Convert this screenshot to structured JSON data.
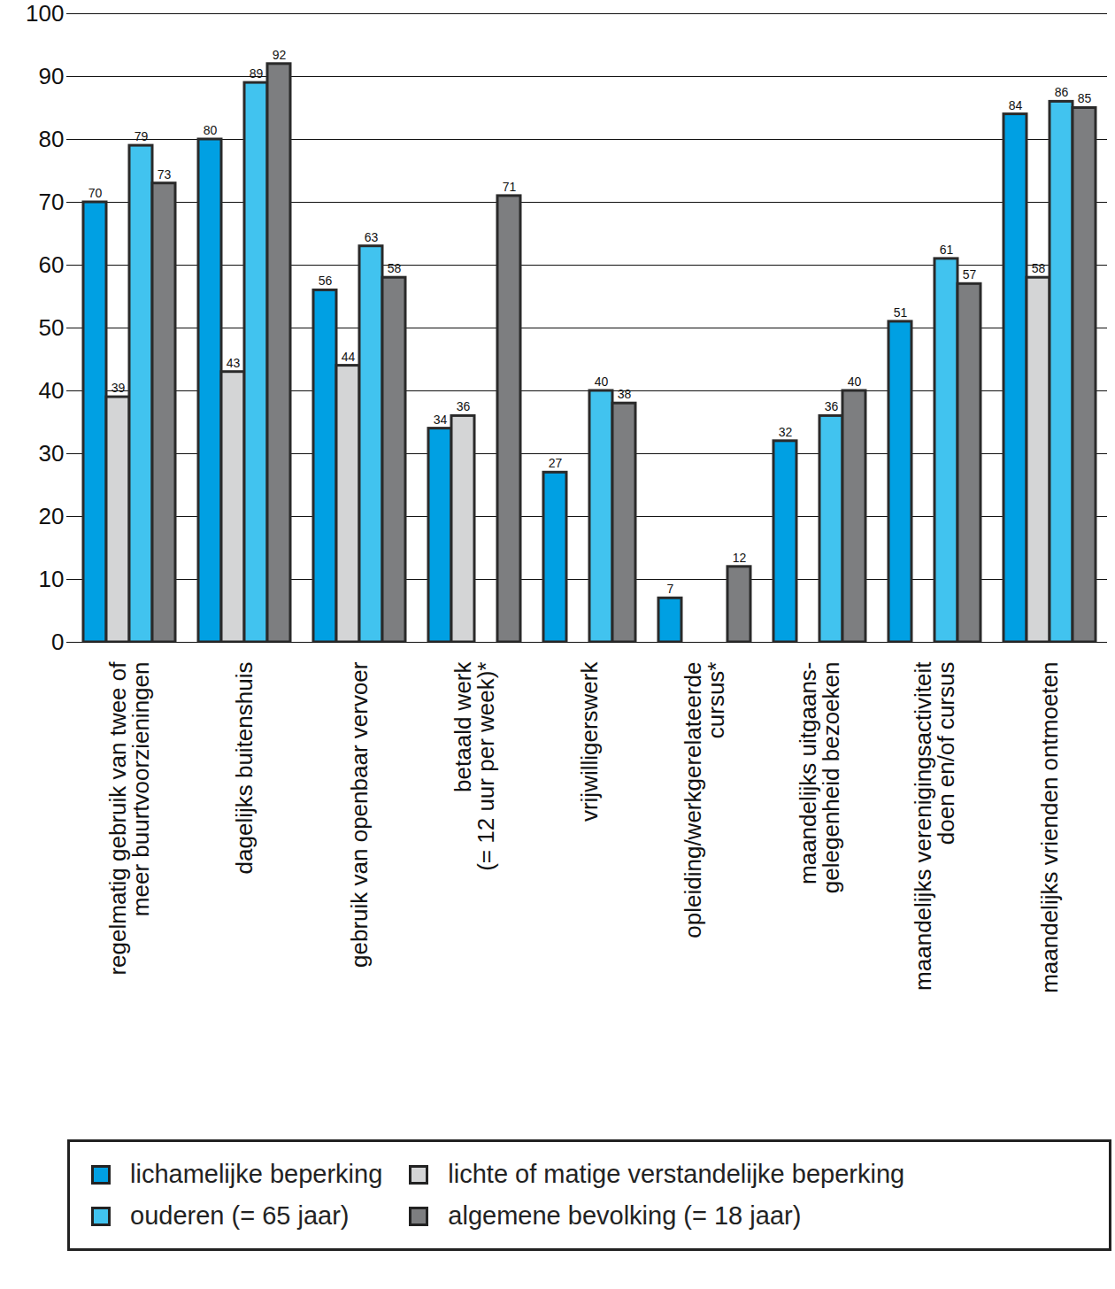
{
  "chart_data": {
    "type": "bar",
    "categories": [
      "regelmatig gebruik van twee of\nmeer buurtvoorzieningen",
      "dagelijks buitenshuis",
      "gebruik van openbaar vervoer",
      "betaald werk\n(= 12 uur per week)*",
      "vrijwilligerswerk",
      "opleiding/werkgerelateerde\ncursus*",
      "maandelijks uitgaans-\ngelegenheid bezoeken",
      "maandelijks verenigingsactiviteit\ndoen en/of cursus",
      "maandelijks vrienden ontmoeten"
    ],
    "series": [
      {
        "name": "lichamelijke beperking",
        "color": "#00a0e3",
        "values": [
          70,
          80,
          56,
          34,
          27,
          7,
          32,
          51,
          84
        ]
      },
      {
        "name": "lichte of matige verstandelijke beperking",
        "color": "#d4d5d6",
        "values": [
          39,
          43,
          44,
          36,
          null,
          null,
          null,
          null,
          58
        ]
      },
      {
        "name": "ouderen (= 65 jaar)",
        "color": "#41c3ef",
        "values": [
          79,
          89,
          63,
          null,
          40,
          null,
          36,
          61,
          86
        ]
      },
      {
        "name": "algemene bevolking (= 18 jaar)",
        "color": "#7d7e80",
        "values": [
          73,
          92,
          58,
          71,
          38,
          12,
          40,
          57,
          85
        ]
      }
    ],
    "ylim": [
      0,
      100
    ],
    "yticks": [
      0,
      10,
      20,
      30,
      40,
      50,
      60,
      70,
      80,
      90,
      100
    ],
    "grid": true,
    "data_labels": true,
    "legend": "bottom"
  }
}
